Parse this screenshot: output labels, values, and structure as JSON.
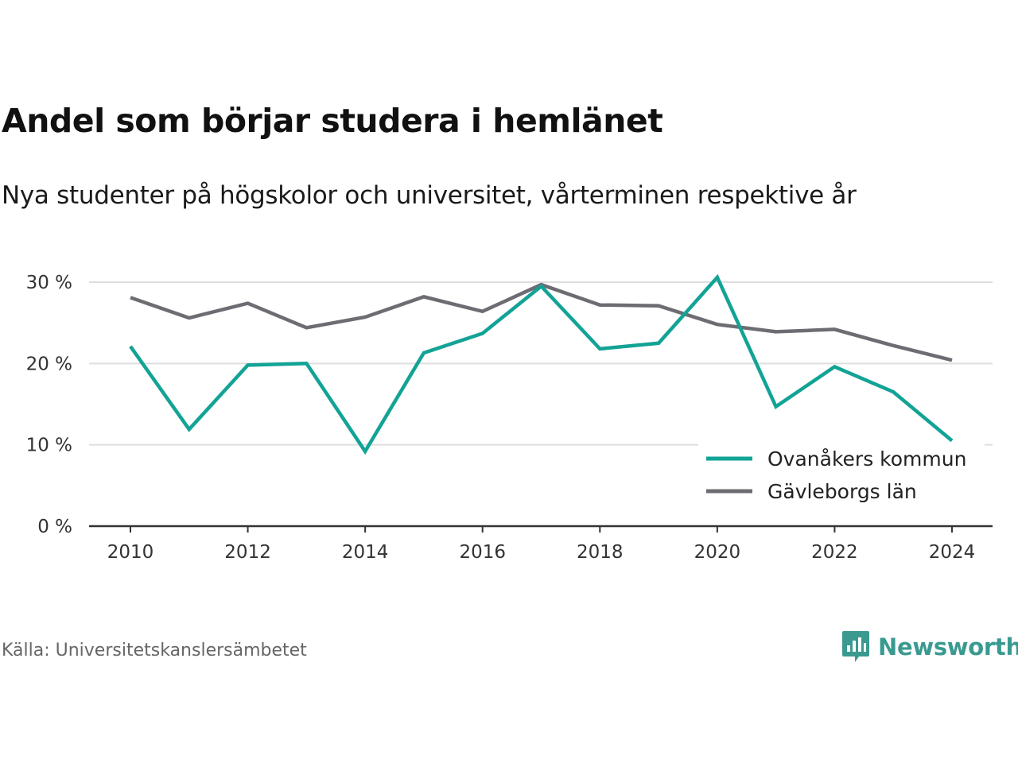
{
  "title": "Andel som börjar studera i hemlänet",
  "subtitle": "Nya studenter på högskolor och universitet, vårterminen respektive år",
  "source": "Källa: Universitetskanslersämbetet",
  "brand": {
    "name": "Newsworthy",
    "icon": "newsworthy-logo-icon",
    "color": "#3a9a90"
  },
  "chart_data": {
    "type": "line",
    "x": [
      2010,
      2011,
      2012,
      2013,
      2014,
      2015,
      2016,
      2017,
      2018,
      2019,
      2020,
      2021,
      2022,
      2023,
      2024
    ],
    "xticks": [
      "2010",
      "2012",
      "2014",
      "2016",
      "2018",
      "2020",
      "2022",
      "2024"
    ],
    "xtick_values": [
      2010,
      2012,
      2014,
      2016,
      2018,
      2020,
      2022,
      2024
    ],
    "yticks": [
      "0 %",
      "10 %",
      "20 %",
      "30 %"
    ],
    "ytick_values": [
      0,
      10,
      20,
      30
    ],
    "ylim": [
      0,
      30
    ],
    "xlim": [
      2010,
      2024
    ],
    "grid": true,
    "legend_position": "bottom-right",
    "series": [
      {
        "name": "Ovanåkers kommun",
        "color": "#13a396",
        "values": [
          22.1,
          11.9,
          19.8,
          20.0,
          9.2,
          21.3,
          23.7,
          29.5,
          21.8,
          22.5,
          30.6,
          14.7,
          19.6,
          16.5,
          10.5
        ]
      },
      {
        "name": "Gävleborgs län",
        "color": "#6e6c73",
        "values": [
          28.1,
          25.6,
          27.4,
          24.4,
          25.7,
          28.2,
          26.4,
          29.7,
          27.2,
          27.1,
          24.8,
          23.9,
          24.2,
          22.2,
          20.4
        ]
      }
    ]
  }
}
